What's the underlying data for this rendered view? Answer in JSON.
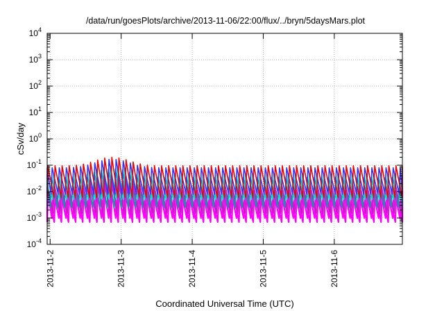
{
  "chart_data": {
    "type": "line",
    "title": "/data/run/goesPlots/archive/2013-11-06/22:00/flux/../bryn/5daysMars.plot",
    "xlabel": "Coordinated Universal Time (UTC)",
    "ylabel": "cSv/day",
    "x_scale": "time",
    "y_scale": "log",
    "xlim": [
      "2013-11-01T23:00",
      "2013-11-06T23:00"
    ],
    "ylim": [
      0.0001,
      10000
    ],
    "grid": true,
    "x_ticks": [
      "2013-11-2",
      "2013-11-3",
      "2013-11-4",
      "2013-11-5",
      "2013-11-6"
    ],
    "y_ticks": [
      {
        "base": "10",
        "exp": "-4"
      },
      {
        "base": "10",
        "exp": "-3"
      },
      {
        "base": "10",
        "exp": "-2"
      },
      {
        "base": "10",
        "exp": "-1"
      },
      {
        "base": "10",
        "exp": "0"
      },
      {
        "base": "10",
        "exp": "1"
      },
      {
        "base": "10",
        "exp": "2"
      },
      {
        "base": "10",
        "exp": "3"
      },
      {
        "base": "10",
        "exp": "4"
      }
    ],
    "pattern": {
      "description": "sawtooth oscillations, period ~0.1 day",
      "period_days": 0.1
    },
    "series": [
      {
        "color": "#ff00ff",
        "low": 0.0007,
        "high": 0.011,
        "phase": 0.0
      },
      {
        "color": "#ff00ff",
        "low": 0.001,
        "high": 0.014,
        "phase": 0.35
      },
      {
        "color": "#bb22bb",
        "low": 0.0015,
        "high": 0.02,
        "phase": 0.15
      },
      {
        "color": "#00a0a0",
        "low": 0.0025,
        "high": 0.035,
        "phase": 0.55
      },
      {
        "color": "#00dddd",
        "low": 0.005,
        "high": 0.045,
        "phase": 0.25
      },
      {
        "color": "#3333ff",
        "low": 0.008,
        "high": 0.08,
        "phase": 0.45
      },
      {
        "color": "#ee0000",
        "low": 0.006,
        "high": 0.095,
        "phase": 0.05
      }
    ]
  }
}
